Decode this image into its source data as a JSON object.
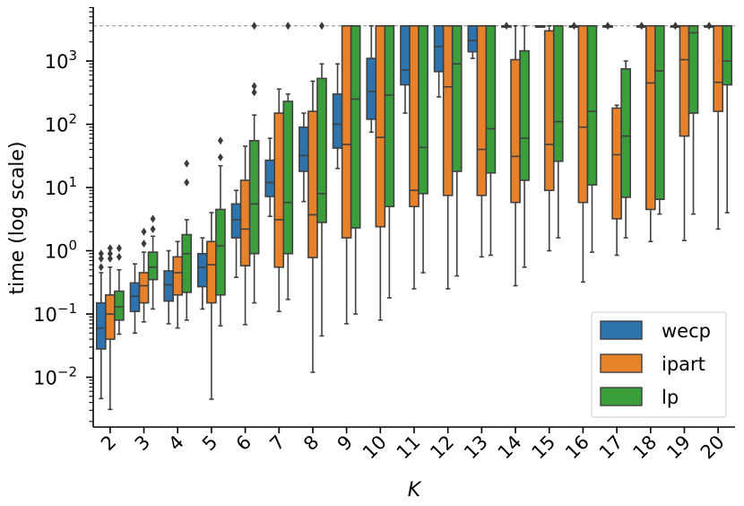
{
  "chart_data": {
    "type": "box",
    "xlabel": "K",
    "ylabel": "time (log scale)",
    "yscale": "log",
    "ylim": [
      0.0015,
      7000
    ],
    "timeout_line": 3600,
    "legend_placement": "lower-right",
    "categories": [
      "2",
      "3",
      "4",
      "5",
      "6",
      "7",
      "8",
      "9",
      "10",
      "11",
      "12",
      "13",
      "14",
      "15",
      "16",
      "17",
      "18",
      "19",
      "20"
    ],
    "ytick_labels": [
      {
        "value": 0.01,
        "base": "10",
        "exp": "−2"
      },
      {
        "value": 0.1,
        "base": "10",
        "exp": "−1"
      },
      {
        "value": 1,
        "base": "10",
        "exp": "0"
      },
      {
        "value": 10,
        "base": "10",
        "exp": "1"
      },
      {
        "value": 100,
        "base": "10",
        "exp": "2"
      },
      {
        "value": 1000,
        "base": "10",
        "exp": "3"
      }
    ],
    "series": [
      {
        "name": "wecp",
        "color": "#2d73ad",
        "boxes": [
          {
            "wl": 0.0046,
            "q1": 0.028,
            "med": 0.06,
            "q3": 0.15,
            "wh": 0.45,
            "fl": [
              0.55,
              0.75,
              0.9
            ]
          },
          {
            "wl": 0.05,
            "q1": 0.11,
            "med": 0.19,
            "q3": 0.31,
            "wh": 0.62,
            "fl": []
          },
          {
            "wl": 0.07,
            "q1": 0.16,
            "med": 0.29,
            "q3": 0.48,
            "wh": 1.0,
            "fl": []
          },
          {
            "wl": 0.12,
            "q1": 0.27,
            "med": 0.55,
            "q3": 0.9,
            "wh": 1.6,
            "fl": []
          },
          {
            "wl": 0.38,
            "q1": 1.6,
            "med": 3.1,
            "q3": 5.5,
            "wh": 9.0,
            "fl": []
          },
          {
            "wl": 3.5,
            "q1": 7.2,
            "med": 12,
            "q3": 27,
            "wh": 60,
            "fl": []
          },
          {
            "wl": 6.0,
            "q1": 18,
            "med": 32,
            "q3": 90,
            "wh": 150,
            "fl": []
          },
          {
            "wl": 20,
            "q1": 42,
            "med": 100,
            "q3": 300,
            "wh": 900,
            "fl": []
          },
          {
            "wl": 75,
            "q1": 120,
            "med": 330,
            "q3": 1100,
            "wh": 3600,
            "fl": []
          },
          {
            "wl": 150,
            "q1": 420,
            "med": 720,
            "q3": 3600,
            "wh": 3600,
            "fl": []
          },
          {
            "wl": 270,
            "q1": 680,
            "med": 1700,
            "q3": 3600,
            "wh": 3600,
            "fl": []
          },
          {
            "wl": 1100,
            "q1": 1400,
            "med": 2100,
            "q3": 3600,
            "wh": 3600,
            "fl": []
          },
          {
            "wl": 3600,
            "q1": 3600,
            "med": 3600,
            "q3": 3600,
            "wh": 3600,
            "fl": [
              3600
            ]
          },
          {
            "wl": 3600,
            "q1": 3600,
            "med": 3600,
            "q3": 3600,
            "wh": 3600,
            "fl": []
          },
          {
            "wl": 3600,
            "q1": 3600,
            "med": 3600,
            "q3": 3600,
            "wh": 3600,
            "fl": [
              3600
            ]
          },
          {
            "wl": 3600,
            "q1": 3600,
            "med": 3600,
            "q3": 3600,
            "wh": 3600,
            "fl": [
              3600
            ]
          },
          {
            "wl": 3600,
            "q1": 3600,
            "med": 3600,
            "q3": 3600,
            "wh": 3600,
            "fl": [
              3600
            ]
          },
          {
            "wl": 3600,
            "q1": 3600,
            "med": 3600,
            "q3": 3600,
            "wh": 3600,
            "fl": [
              3600
            ]
          },
          {
            "wl": 3600,
            "q1": 3600,
            "med": 3600,
            "q3": 3600,
            "wh": 3600,
            "fl": [
              3600
            ]
          }
        ]
      },
      {
        "name": "ipart",
        "color": "#e8822a",
        "boxes": [
          {
            "wl": 0.0031,
            "q1": 0.04,
            "med": 0.1,
            "q3": 0.2,
            "wh": 0.55,
            "fl": [
              0.75,
              0.9,
              1.1
            ]
          },
          {
            "wl": 0.075,
            "q1": 0.15,
            "med": 0.28,
            "q3": 0.45,
            "wh": 0.95,
            "fl": [
              1.3,
              2.0
            ]
          },
          {
            "wl": 0.06,
            "q1": 0.2,
            "med": 0.45,
            "q3": 0.8,
            "wh": 1.4,
            "fl": []
          },
          {
            "wl": 0.0045,
            "q1": 0.15,
            "med": 0.6,
            "q3": 1.4,
            "wh": 4.0,
            "fl": []
          },
          {
            "wl": 0.068,
            "q1": 0.58,
            "med": 2.2,
            "q3": 13,
            "wh": 45,
            "fl": []
          },
          {
            "wl": 0.11,
            "q1": 0.55,
            "med": 3.1,
            "q3": 150,
            "wh": 360,
            "fl": []
          },
          {
            "wl": 0.012,
            "q1": 0.78,
            "med": 3.7,
            "q3": 160,
            "wh": 480,
            "fl": []
          },
          {
            "wl": 0.07,
            "q1": 1.6,
            "med": 48,
            "q3": 3600,
            "wh": 3600,
            "fl": []
          },
          {
            "wl": 0.08,
            "q1": 2.4,
            "med": 62,
            "q3": 3600,
            "wh": 3600,
            "fl": []
          },
          {
            "wl": 0.25,
            "q1": 5.0,
            "med": 9.0,
            "q3": 3600,
            "wh": 3600,
            "fl": []
          },
          {
            "wl": 0.25,
            "q1": 7.5,
            "med": 390,
            "q3": 3600,
            "wh": 3600,
            "fl": []
          },
          {
            "wl": 0.8,
            "q1": 7.5,
            "med": 40,
            "q3": 3600,
            "wh": 3600,
            "fl": []
          },
          {
            "wl": 0.28,
            "q1": 5.8,
            "med": 31,
            "q3": 1050,
            "wh": 3600,
            "fl": []
          },
          {
            "wl": 1.0,
            "q1": 9.0,
            "med": 48,
            "q3": 3000,
            "wh": 3600,
            "fl": []
          },
          {
            "wl": 0.32,
            "q1": 5.8,
            "med": 90,
            "q3": 3600,
            "wh": 3600,
            "fl": []
          },
          {
            "wl": 0.85,
            "q1": 3.2,
            "med": 33,
            "q3": 180,
            "wh": 200,
            "fl": []
          },
          {
            "wl": 1.4,
            "q1": 4.5,
            "med": 450,
            "q3": 3600,
            "wh": 3600,
            "fl": []
          },
          {
            "wl": 1.45,
            "q1": 65,
            "med": 1050,
            "q3": 3600,
            "wh": 3600,
            "fl": []
          },
          {
            "wl": 2.2,
            "q1": 160,
            "med": 460,
            "q3": 3600,
            "wh": 3600,
            "fl": []
          }
        ]
      },
      {
        "name": "lp",
        "color": "#3a9e3a",
        "boxes": [
          {
            "wl": 0.048,
            "q1": 0.08,
            "med": 0.13,
            "q3": 0.23,
            "wh": 0.5,
            "fl": [
              0.8,
              1.1
            ]
          },
          {
            "wl": 0.12,
            "q1": 0.35,
            "med": 0.55,
            "q3": 0.95,
            "wh": 1.7,
            "fl": [
              2.2,
              3.2
            ]
          },
          {
            "wl": 0.08,
            "q1": 0.22,
            "med": 0.9,
            "q3": 1.8,
            "wh": 3.1,
            "fl": [
              12,
              24
            ]
          },
          {
            "wl": 0.065,
            "q1": 0.2,
            "med": 1.2,
            "q3": 4.5,
            "wh": 22,
            "fl": [
              30,
              55
            ]
          },
          {
            "wl": 0.15,
            "q1": 0.9,
            "med": 5.5,
            "q3": 55,
            "wh": 140,
            "fl": [
              320,
              400,
              3600
            ]
          },
          {
            "wl": 0.17,
            "q1": 0.9,
            "med": 5.8,
            "q3": 230,
            "wh": 300,
            "fl": [
              3600
            ]
          },
          {
            "wl": 0.045,
            "q1": 2.8,
            "med": 8.0,
            "q3": 530,
            "wh": 900,
            "fl": [
              3600
            ]
          },
          {
            "wl": 0.1,
            "q1": 2.3,
            "med": 250,
            "q3": 3600,
            "wh": 3600,
            "fl": []
          },
          {
            "wl": 0.18,
            "q1": 5.0,
            "med": 290,
            "q3": 3600,
            "wh": 3600,
            "fl": []
          },
          {
            "wl": 0.45,
            "q1": 8.0,
            "med": 43,
            "q3": 3600,
            "wh": 3600,
            "fl": []
          },
          {
            "wl": 0.4,
            "q1": 18,
            "med": 900,
            "q3": 3600,
            "wh": 3600,
            "fl": []
          },
          {
            "wl": 0.85,
            "q1": 17,
            "med": 85,
            "q3": 3600,
            "wh": 3600,
            "fl": []
          },
          {
            "wl": 0.55,
            "q1": 13,
            "med": 60,
            "q3": 1450,
            "wh": 3600,
            "fl": []
          },
          {
            "wl": 1.6,
            "q1": 26,
            "med": 110,
            "q3": 3600,
            "wh": 3600,
            "fl": []
          },
          {
            "wl": 0.95,
            "q1": 11,
            "med": 160,
            "q3": 3600,
            "wh": 3600,
            "fl": []
          },
          {
            "wl": 1.6,
            "q1": 7.0,
            "med": 65,
            "q3": 750,
            "wh": 1000,
            "fl": []
          },
          {
            "wl": 3.8,
            "q1": 6.5,
            "med": 700,
            "q3": 3600,
            "wh": 3600,
            "fl": []
          },
          {
            "wl": 3.8,
            "q1": 150,
            "med": 2800,
            "q3": 3600,
            "wh": 3600,
            "fl": []
          },
          {
            "wl": 4.0,
            "q1": 420,
            "med": 1000,
            "q3": 3600,
            "wh": 3600,
            "fl": []
          }
        ]
      }
    ]
  }
}
